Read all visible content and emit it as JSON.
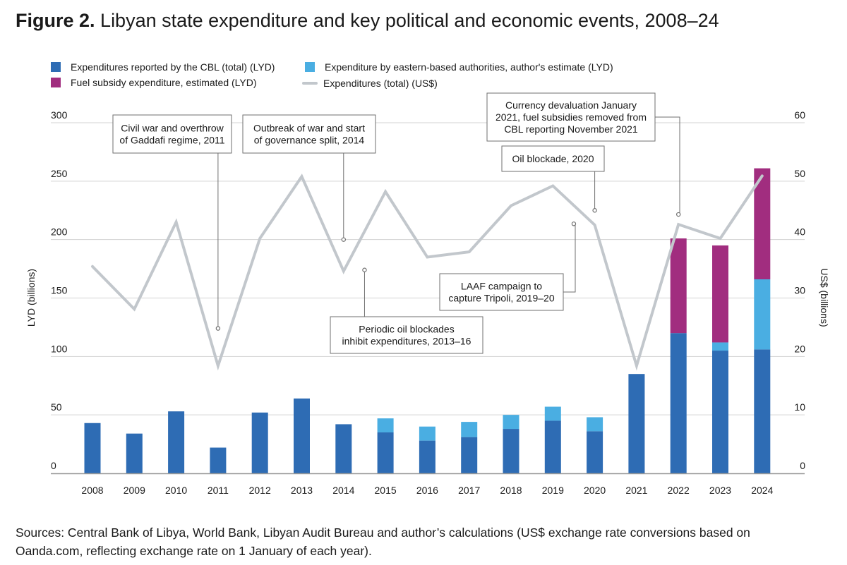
{
  "figure": {
    "label": "Figure 2.",
    "title": "Libyan state expenditure and key political and economic events, 2008–24"
  },
  "legend": [
    {
      "label": "Expenditures reported by the CBL (total) (LYD)",
      "color": "#2e6cb4",
      "kind": "box"
    },
    {
      "label": "Expenditure by eastern-based authorities, author's estimate (LYD)",
      "color": "#4aaee2",
      "kind": "box"
    },
    {
      "label": "Fuel subsidy expenditure, estimated (LYD)",
      "color": "#a12d7f",
      "kind": "box"
    },
    {
      "label": "Expenditures (total) (US$)",
      "color": "#c2c7cc",
      "kind": "line"
    }
  ],
  "chart_data": {
    "type": "bar",
    "categories": [
      "2008",
      "2009",
      "2010",
      "2011",
      "2012",
      "2013",
      "2014",
      "2015",
      "2016",
      "2017",
      "2018",
      "2019",
      "2020",
      "2021",
      "2022",
      "2023",
      "2024"
    ],
    "series": [
      {
        "name": "Expenditures reported by the CBL (total) (LYD)",
        "axis": "left",
        "type": "bar",
        "stack": "lyd",
        "values": [
          43,
          34,
          53,
          22,
          52,
          64,
          42,
          35,
          28,
          31,
          38,
          45,
          36,
          85,
          120,
          105,
          106
        ]
      },
      {
        "name": "Expenditure by eastern-based authorities, author's estimate (LYD)",
        "axis": "left",
        "type": "bar",
        "stack": "lyd",
        "values": [
          0,
          0,
          0,
          0,
          0,
          0,
          0,
          12,
          12,
          13,
          12,
          12,
          12,
          0,
          0,
          7,
          60
        ]
      },
      {
        "name": "Fuel subsidy expenditure, estimated (LYD)",
        "axis": "left",
        "type": "bar",
        "stack": "lyd",
        "values": [
          0,
          0,
          0,
          0,
          0,
          0,
          0,
          0,
          0,
          0,
          0,
          0,
          0,
          0,
          81,
          83,
          95
        ]
      },
      {
        "name": "Expenditures (total) (US$)",
        "axis": "right",
        "type": "line",
        "values": [
          35.4,
          28.1,
          43,
          18.4,
          40.2,
          50.8,
          34.6,
          48.2,
          37,
          37.9,
          45.8,
          49.2,
          42.5,
          18.4,
          42.6,
          40.2,
          50.9
        ]
      }
    ],
    "ylabel": "LYD (billions)",
    "y2label": "US$ (billions)",
    "ylim": [
      0,
      300
    ],
    "y2lim": [
      0,
      60
    ],
    "yticks": [
      "0",
      "50",
      "100",
      "150",
      "200",
      "250",
      "300"
    ],
    "y2ticks": [
      "0",
      "10",
      "20",
      "30",
      "40",
      "50",
      "60"
    ],
    "grid": true,
    "annotations": [
      {
        "lines": [
          "Civil war and overthrow",
          "of Gaddafi regime, 2011"
        ],
        "year": "2011",
        "value": 24.8
      },
      {
        "lines": [
          "Outbreak of war and start",
          "of governance split, 2014"
        ],
        "year": "2014",
        "value": 40
      },
      {
        "lines": [
          "Periodic oil blockades",
          "inhibit expenditures, 2013–16"
        ],
        "year": "2014.5",
        "value": 34.8
      },
      {
        "lines": [
          "LAAF campaign to",
          "capture Tripoli, 2019–20"
        ],
        "year": "2019.5",
        "value": 42.7
      },
      {
        "lines": [
          "Oil blockade, 2020"
        ],
        "year": "2020",
        "value": 45
      },
      {
        "lines": [
          "Currency devaluation January",
          "2021, fuel subsidies removed from",
          "CBL reporting November 2021"
        ],
        "year": "2022",
        "value": 44.3
      }
    ]
  },
  "source": "Sources: Central Bank of Libya, World Bank, Libyan Audit Bureau and author’s calculations (US$ exchange rate conversions based on Oanda.com, reflecting exchange rate on 1 January of each year)."
}
